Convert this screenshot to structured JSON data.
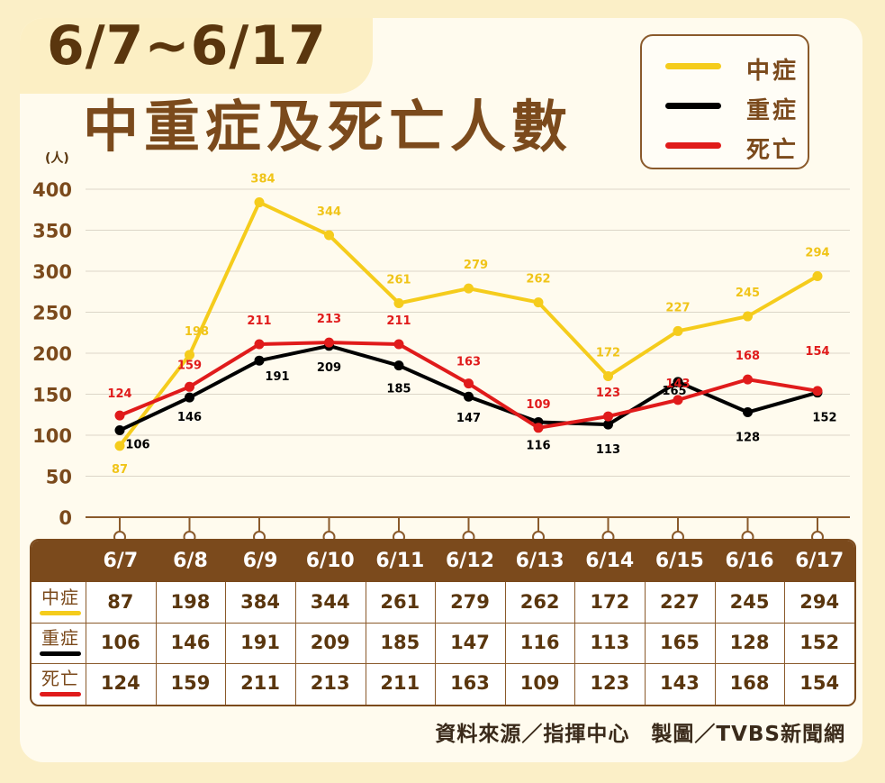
{
  "header": {
    "date_range": "6/7~6/17",
    "title": "中重症及死亡人數"
  },
  "legend": [
    {
      "label": "中症",
      "color": "#f5cc1c"
    },
    {
      "label": "重症",
      "color": "#000000"
    },
    {
      "label": "死亡",
      "color": "#e01b1b"
    }
  ],
  "chart_data": {
    "type": "line",
    "ylabel": "(人)",
    "ylim": [
      0,
      400
    ],
    "yticks": [
      0,
      50,
      100,
      150,
      200,
      250,
      300,
      350,
      400
    ],
    "grid": true,
    "legend_position": "top-right",
    "categories": [
      "6/7",
      "6/8",
      "6/9",
      "6/10",
      "6/11",
      "6/12",
      "6/13",
      "6/14",
      "6/15",
      "6/16",
      "6/17"
    ],
    "series": [
      {
        "name": "中症",
        "color": "#f5cc1c",
        "label_color": "#f0c419",
        "values": [
          87,
          198,
          384,
          344,
          261,
          279,
          262,
          172,
          227,
          245,
          294
        ]
      },
      {
        "name": "重症",
        "color": "#000000",
        "label_color": "#000000",
        "values": [
          106,
          146,
          191,
          209,
          185,
          147,
          116,
          113,
          165,
          128,
          152
        ]
      },
      {
        "name": "死亡",
        "color": "#e01b1b",
        "label_color": "#e01b1b",
        "values": [
          124,
          159,
          211,
          213,
          211,
          163,
          109,
          123,
          143,
          168,
          154
        ]
      }
    ]
  },
  "table": {
    "columns": [
      "6/7",
      "6/8",
      "6/9",
      "6/10",
      "6/11",
      "6/12",
      "6/13",
      "6/14",
      "6/15",
      "6/16",
      "6/17"
    ],
    "rows": [
      {
        "label": "中症",
        "color": "#f5cc1c",
        "values": [
          "87",
          "198",
          "384",
          "344",
          "261",
          "279",
          "262",
          "172",
          "227",
          "245",
          "294"
        ]
      },
      {
        "label": "重症",
        "color": "#000000",
        "values": [
          "106",
          "146",
          "191",
          "209",
          "185",
          "147",
          "116",
          "113",
          "165",
          "128",
          "152"
        ]
      },
      {
        "label": "死亡",
        "color": "#e01b1b",
        "values": [
          "124",
          "159",
          "211",
          "213",
          "211",
          "163",
          "109",
          "123",
          "143",
          "168",
          "154"
        ]
      }
    ]
  },
  "footer": {
    "source": "資料來源／指揮中心　製圖／TVBS新聞網"
  }
}
